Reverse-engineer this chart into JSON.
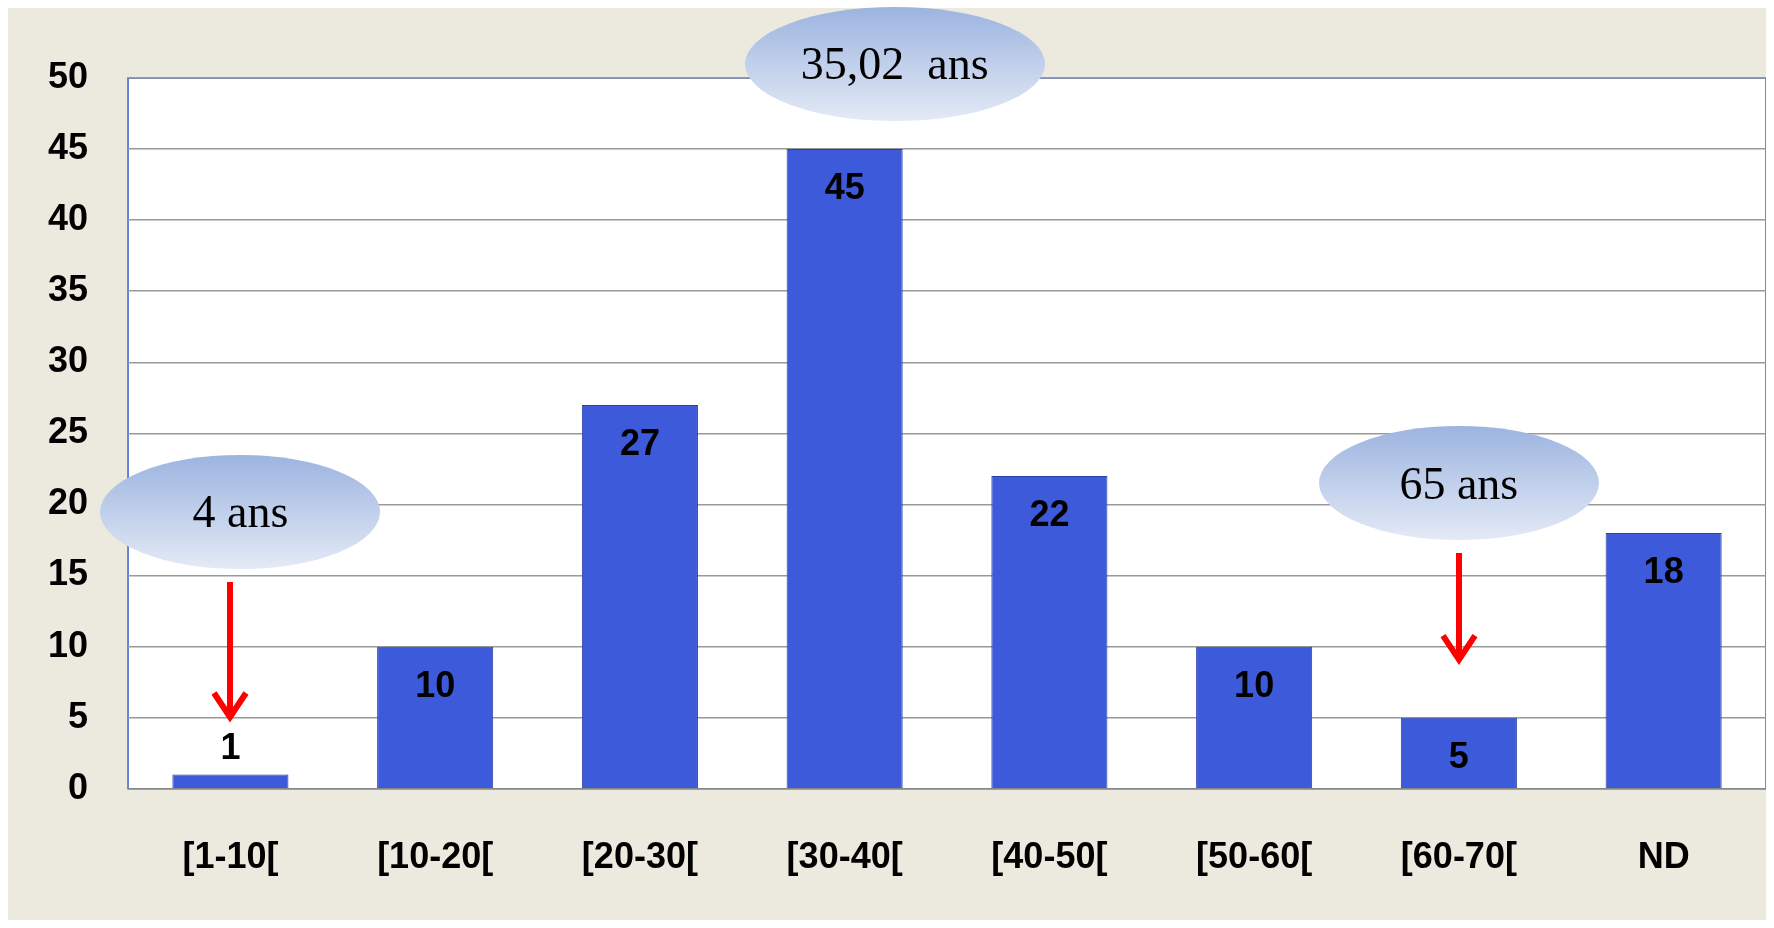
{
  "chart_data": {
    "type": "bar",
    "categories": [
      "[1-10[",
      "[10-20[",
      "[20-30[",
      "[30-40[",
      "[40-50[",
      "[50-60[",
      "[60-70[",
      "ND"
    ],
    "values": [
      1,
      10,
      27,
      45,
      22,
      10,
      5,
      18
    ],
    "color": "#3c5ad9",
    "ylim": [
      0,
      50
    ],
    "yticks": [
      0,
      5,
      10,
      15,
      20,
      25,
      30,
      35,
      40,
      45,
      50
    ],
    "grid": "y",
    "legend": false,
    "data_labels": true,
    "annotations": [
      "4 ans",
      "35,02  ans",
      "65 ans"
    ]
  }
}
